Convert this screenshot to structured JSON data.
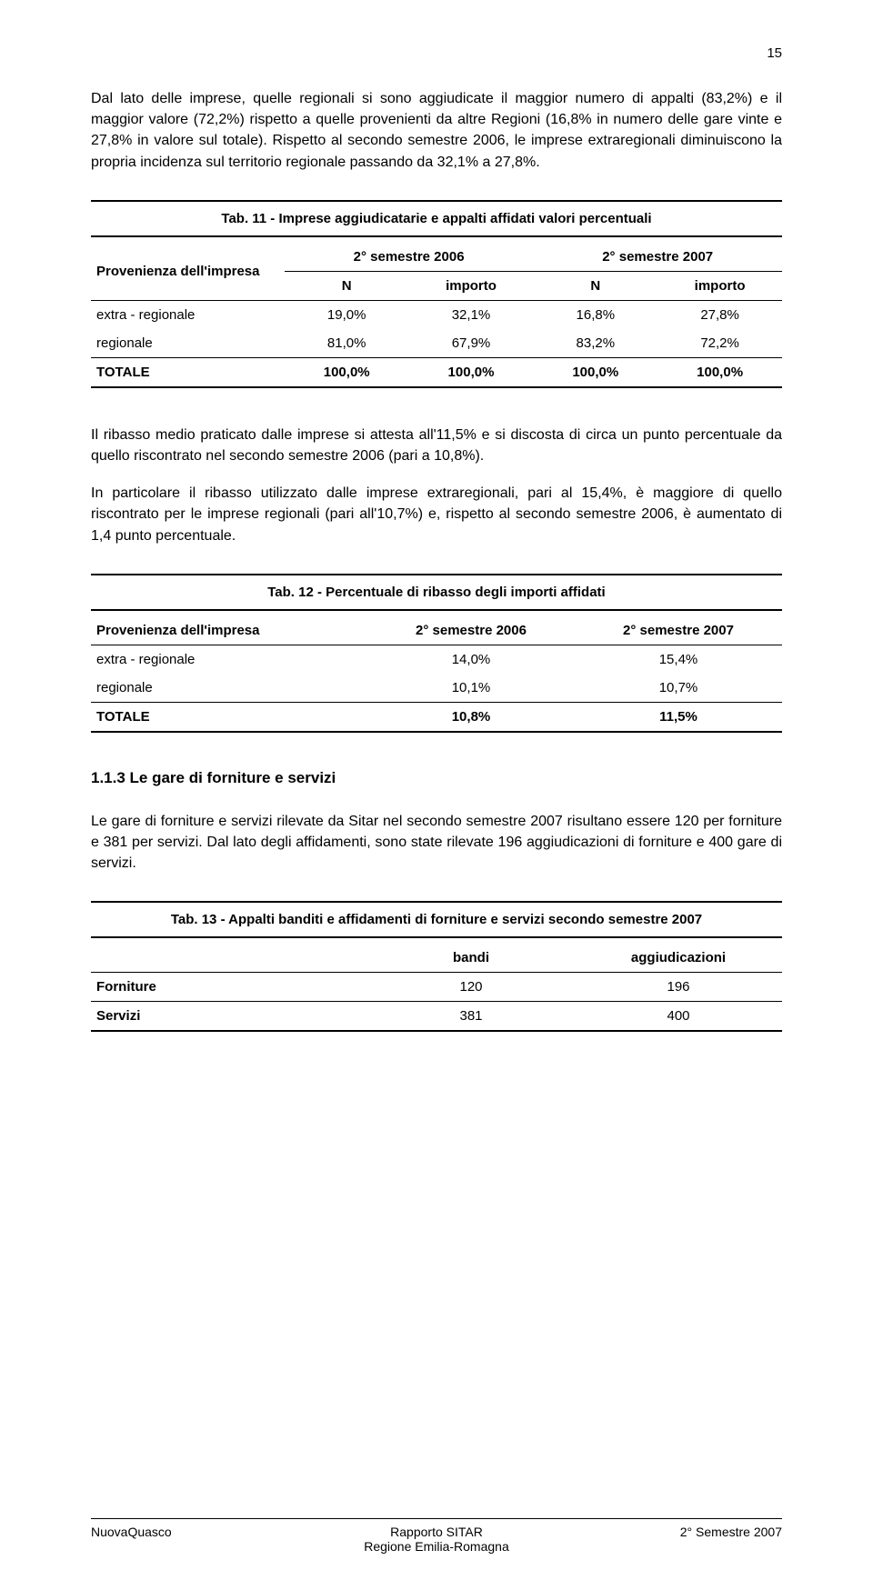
{
  "page_number": "15",
  "para1": "Dal lato delle imprese, quelle regionali si sono aggiudicate il maggior numero di appalti (83,2%) e il maggior valore (72,2%) rispetto a quelle provenienti da altre Regioni (16,8% in numero delle gare vinte e 27,8% in valore sul totale). Rispetto al secondo semestre 2006, le imprese extraregionali diminuiscono la propria incidenza sul territorio regionale passando da 32,1% a 27,8%.",
  "table11": {
    "caption": "Tab. 11 - Imprese aggiudicatarie e appalti affidati valori percentuali",
    "row_header_label": "Provenienza dell'impresa",
    "group_headers": [
      "2° semestre 2006",
      "2° semestre 2007"
    ],
    "sub_headers": [
      "N",
      "importo",
      "N",
      "importo"
    ],
    "rows": [
      {
        "label": "extra - regionale",
        "cells": [
          "19,0%",
          "32,1%",
          "16,8%",
          "27,8%"
        ],
        "bold": false
      },
      {
        "label": "regionale",
        "cells": [
          "81,0%",
          "67,9%",
          "83,2%",
          "72,2%"
        ],
        "bold": false
      },
      {
        "label": "TOTALE",
        "cells": [
          "100,0%",
          "100,0%",
          "100,0%",
          "100,0%"
        ],
        "bold": true
      }
    ]
  },
  "para2": "Il ribasso medio praticato dalle imprese si attesta all'11,5% e si discosta di circa un punto percentuale da quello riscontrato nel secondo semestre 2006 (pari a 10,8%).",
  "para3": "In particolare il ribasso utilizzato dalle imprese extraregionali, pari al 15,4%, è maggiore di quello riscontrato per le imprese regionali (pari all'10,7%) e, rispetto al secondo semestre 2006, è aumentato di 1,4 punto percentuale.",
  "table12": {
    "caption": "Tab. 12 - Percentuale di ribasso degli importi affidati",
    "columns": [
      "Provenienza dell'impresa",
      "2° semestre 2006",
      "2° semestre 2007"
    ],
    "rows": [
      {
        "label": "extra - regionale",
        "cells": [
          "14,0%",
          "15,4%"
        ],
        "bold": false
      },
      {
        "label": "regionale",
        "cells": [
          "10,1%",
          "10,7%"
        ],
        "bold": false
      },
      {
        "label": "TOTALE",
        "cells": [
          "10,8%",
          "11,5%"
        ],
        "bold": true
      }
    ]
  },
  "section_heading": "1.1.3 Le gare di forniture e servizi",
  "para4": "Le gare di forniture e servizi rilevate da Sitar nel secondo semestre 2007 risultano essere 120 per forniture e 381 per servizi. Dal lato degli affidamenti, sono state rilevate 196 aggiudicazioni di forniture e 400 gare di servizi.",
  "table13": {
    "caption": "Tab. 13 - Appalti banditi e affidamenti di forniture e servizi secondo semestre 2007",
    "columns": [
      "",
      "bandi",
      "aggiudicazioni"
    ],
    "rows": [
      {
        "label": "Forniture",
        "cells": [
          "120",
          "196"
        ],
        "bold": false
      },
      {
        "label": "Servizi",
        "cells": [
          "381",
          "400"
        ],
        "bold": false
      }
    ]
  },
  "footer": {
    "left": "NuovaQuasco",
    "center_line1": "Rapporto SITAR",
    "center_line2": "Regione Emilia-Romagna",
    "right": "2° Semestre 2007"
  }
}
